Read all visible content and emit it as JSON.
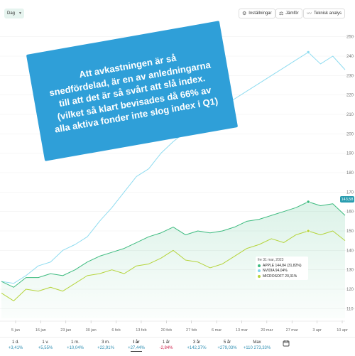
{
  "toolbar": {
    "period_select": "Dag",
    "settings_label": "Inställningar",
    "compare_label": "Jämför",
    "technical_label": "Teknisk analys"
  },
  "banner": {
    "lines": [
      "Att avkastningen är så",
      "snedfördelad, är en av anledningarna",
      "till att det är så svårt att slå index.",
      "(vilket så klart bevisades då 66% av",
      "alla aktiva fonder inte slog index i Q1)"
    ]
  },
  "tooltip": {
    "date": "fre 31 mar, 2023",
    "rows": [
      {
        "label": "APPLE 144,84 (31,82%)",
        "color": "#3dbb7f"
      },
      {
        "label": "NVIDIA 94,04%",
        "color": "#7fd6ee"
      },
      {
        "label": "MICROSOFT 20,31%",
        "color": "#b5d43b"
      }
    ]
  },
  "last_value_badge": "143,58",
  "chart_data": {
    "type": "line",
    "y_ticks": [
      "250",
      "240",
      "230",
      "220",
      "210",
      "200",
      "190",
      "180",
      "170",
      "160",
      "150",
      "140",
      "130",
      "120",
      "110"
    ],
    "ylim": [
      105,
      255
    ],
    "x_tick_labels": [
      "5 jan",
      "16 jan",
      "23 jan",
      "30 jan",
      "6 feb",
      "13 feb",
      "20 feb",
      "27 feb",
      "6 mar",
      "13 mar",
      "20 mar",
      "27 mar",
      "3 apr",
      "10 apr"
    ],
    "series": [
      {
        "name": "NVIDIA",
        "color": "#8fdcf0",
        "values": [
          124,
          123,
          127,
          132,
          134,
          140,
          143,
          147,
          155,
          162,
          170,
          178,
          182,
          190,
          196,
          201,
          204,
          209,
          214,
          218,
          222,
          226,
          230,
          234,
          238,
          242,
          236,
          240,
          233
        ]
      },
      {
        "name": "APPLE",
        "color": "#3dbb7f",
        "values": [
          124,
          121,
          126,
          126,
          128,
          127,
          130,
          134,
          137,
          139,
          141,
          144,
          147,
          149,
          152,
          148,
          150,
          149,
          150,
          152,
          155,
          156,
          158,
          160,
          162,
          165,
          163,
          164,
          158
        ]
      },
      {
        "name": "MICROSOFT",
        "color": "#b5d43b",
        "values": [
          118,
          114,
          120,
          119,
          121,
          119,
          123,
          127,
          128,
          130,
          128,
          132,
          133,
          136,
          140,
          135,
          134,
          131,
          133,
          137,
          141,
          143,
          146,
          144,
          148,
          150,
          148,
          150,
          145
        ]
      }
    ]
  },
  "periods": [
    {
      "label": "1 d.",
      "value": "+3,41%",
      "sign": "pos",
      "active": false
    },
    {
      "label": "1 v.",
      "value": "+5,55%",
      "sign": "pos",
      "active": false
    },
    {
      "label": "1 m.",
      "value": "+10,04%",
      "sign": "pos",
      "active": false
    },
    {
      "label": "3 m.",
      "value": "+22,91%",
      "sign": "pos",
      "active": false
    },
    {
      "label": "I år",
      "value": "+27,44%",
      "sign": "pos",
      "active": true
    },
    {
      "label": "1 år",
      "value": "-2,84%",
      "sign": "neg",
      "active": false
    },
    {
      "label": "3 år",
      "value": "+142,37%",
      "sign": "pos",
      "active": false
    },
    {
      "label": "5 år",
      "value": "+279,03%",
      "sign": "pos",
      "active": false
    },
    {
      "label": "Max",
      "value": "+110 273,33%",
      "sign": "pos",
      "active": false
    }
  ]
}
